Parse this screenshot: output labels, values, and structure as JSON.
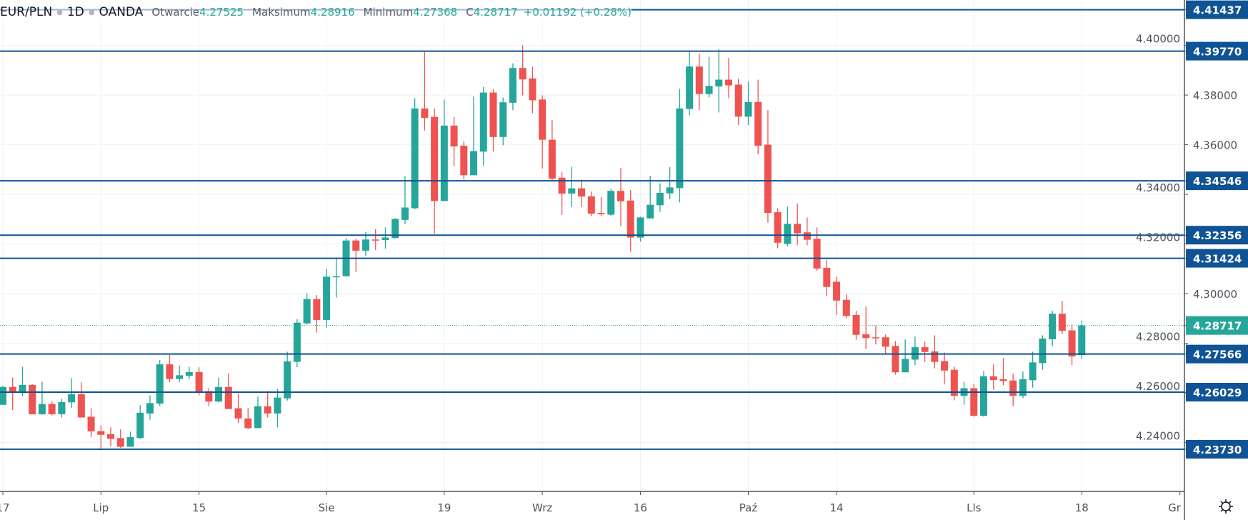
{
  "header": {
    "symbol": "EUR/PLN",
    "interval": "1D",
    "exchange": "OANDA",
    "open_label": "Otwarcie",
    "open_value": "4.27525",
    "high_label": "Maksimum",
    "high_value": "4.28916",
    "low_label": "Minimum",
    "low_value": "4.27368",
    "close_label": "C",
    "close_value": "4.28717",
    "change": "+0.01192 (+0.28%)"
  },
  "colors": {
    "up": "#26a69a",
    "down": "#ef5350",
    "level": "#0f5394",
    "grid": "#eef2f8",
    "text": "#50535e"
  },
  "chart_data": {
    "type": "candlestick",
    "title": "EUR/PLN 1D OANDA",
    "ylim": [
      4.2203,
      4.4183
    ],
    "y_ticks": [
      "4.40000",
      "4.38000",
      "4.36000",
      "4.34000",
      "4.32000",
      "4.30000",
      "4.28000",
      "4.26000",
      "4.24000"
    ],
    "x_ticks": [
      {
        "label": "17",
        "index": 0
      },
      {
        "label": "Lip",
        "index": 10
      },
      {
        "label": "15",
        "index": 20
      },
      {
        "label": "Sie",
        "index": 33
      },
      {
        "label": "19",
        "index": 45
      },
      {
        "label": "Wrz",
        "index": 55
      },
      {
        "label": "16",
        "index": 65
      },
      {
        "label": "Paź",
        "index": 76
      },
      {
        "label": "14",
        "index": 85
      },
      {
        "label": "Lls",
        "index": 99
      },
      {
        "label": "18",
        "index": 110
      },
      {
        "label": "Gr",
        "index": 120
      }
    ],
    "levels": [
      "4.41437",
      "4.39770",
      "4.34546",
      "4.32356",
      "4.31424",
      "4.27566",
      "4.26029",
      "4.23730"
    ],
    "last_price": "4.28717",
    "ohlc": [
      [
        4.2552,
        4.2629,
        4.2552,
        4.2624
      ],
      [
        4.2624,
        4.2662,
        4.2531,
        4.26
      ],
      [
        4.26,
        4.2705,
        4.2587,
        4.2632
      ],
      [
        4.2632,
        4.2636,
        4.2514,
        4.2514
      ],
      [
        4.2514,
        4.2645,
        4.2512,
        4.2555
      ],
      [
        4.2555,
        4.2566,
        4.2509,
        4.2514
      ],
      [
        4.2514,
        4.2576,
        4.2501,
        4.2563
      ],
      [
        4.2562,
        4.2659,
        4.2539,
        4.2595
      ],
      [
        4.2595,
        4.2642,
        4.2501,
        4.2501
      ],
      [
        4.2504,
        4.2538,
        4.2422,
        4.2445
      ],
      [
        4.2446,
        4.2469,
        4.2372,
        4.2431
      ],
      [
        4.2434,
        4.2461,
        4.2384,
        4.2415
      ],
      [
        4.2418,
        4.2453,
        4.2379,
        4.2383
      ],
      [
        4.2383,
        4.2444,
        4.2383,
        4.2422
      ],
      [
        4.2418,
        4.255,
        4.2415,
        4.252
      ],
      [
        4.2517,
        4.259,
        4.2492,
        4.2559
      ],
      [
        4.2557,
        4.2732,
        4.2547,
        4.2715
      ],
      [
        4.2715,
        4.2753,
        4.2643,
        4.2656
      ],
      [
        4.2656,
        4.271,
        4.2643,
        4.2671
      ],
      [
        4.2669,
        4.2705,
        4.2656,
        4.2684
      ],
      [
        4.2684,
        4.2703,
        4.259,
        4.2604
      ],
      [
        4.2607,
        4.2619,
        4.2547,
        4.2565
      ],
      [
        4.2565,
        4.2662,
        4.2562,
        4.2624
      ],
      [
        4.2624,
        4.2679,
        4.2535,
        4.2535
      ],
      [
        4.2538,
        4.2598,
        4.2478,
        4.2497
      ],
      [
        4.2497,
        4.254,
        4.2453,
        4.2458
      ],
      [
        4.2458,
        4.2585,
        4.2458,
        4.2546
      ],
      [
        4.2546,
        4.2608,
        4.2501,
        4.2517
      ],
      [
        4.2517,
        4.2616,
        4.2461,
        4.2581
      ],
      [
        4.2578,
        4.2766,
        4.2569,
        4.2727
      ],
      [
        4.2725,
        4.2897,
        4.2703,
        4.2883
      ],
      [
        4.288,
        4.3001,
        4.2876,
        4.2978
      ],
      [
        4.2978,
        4.2994,
        4.2843,
        4.2894
      ],
      [
        4.2894,
        4.3099,
        4.2863,
        4.3068
      ],
      [
        4.3066,
        4.3145,
        4.2984,
        4.307
      ],
      [
        4.307,
        4.3224,
        4.307,
        4.3214
      ],
      [
        4.3214,
        4.3222,
        4.3087,
        4.3173
      ],
      [
        4.3173,
        4.3249,
        4.3152,
        4.3218
      ],
      [
        4.3218,
        4.326,
        4.3176,
        4.3216
      ],
      [
        4.3216,
        4.3267,
        4.3181,
        4.3226
      ],
      [
        4.3224,
        4.3304,
        4.3222,
        4.3301
      ],
      [
        4.3297,
        4.3473,
        4.328,
        4.3347
      ],
      [
        4.3344,
        4.3787,
        4.334,
        4.3746
      ],
      [
        4.3746,
        4.3979,
        4.3657,
        4.3708
      ],
      [
        4.3712,
        4.3746,
        4.3241,
        4.3373
      ],
      [
        4.3373,
        4.3782,
        4.3373,
        4.3677
      ],
      [
        4.3677,
        4.3712,
        4.3514,
        4.3593
      ],
      [
        4.3596,
        4.3613,
        4.346,
        4.3477
      ],
      [
        4.3477,
        4.3794,
        4.3477,
        4.3574
      ],
      [
        4.3572,
        4.3833,
        4.3516,
        4.381
      ],
      [
        4.381,
        4.3825,
        4.3572,
        4.3631
      ],
      [
        4.3631,
        4.379,
        4.3598,
        4.3771
      ],
      [
        4.3769,
        4.3928,
        4.3739,
        4.3909
      ],
      [
        4.3909,
        4.4001,
        4.3799,
        4.3863
      ],
      [
        4.3867,
        4.3914,
        4.3727,
        4.3779
      ],
      [
        4.3782,
        4.3799,
        4.3504,
        4.362
      ],
      [
        4.362,
        4.37,
        4.3454,
        4.3463
      ],
      [
        4.3467,
        4.3489,
        4.3317,
        4.3403
      ],
      [
        4.3403,
        4.3511,
        4.3349,
        4.3424
      ],
      [
        4.3424,
        4.3458,
        4.3349,
        4.3391
      ],
      [
        4.3392,
        4.3411,
        4.3313,
        4.3322
      ],
      [
        4.3325,
        4.3389,
        4.3313,
        4.332
      ],
      [
        4.3318,
        4.3422,
        4.3313,
        4.3414
      ],
      [
        4.3414,
        4.3506,
        4.3272,
        4.3372
      ],
      [
        4.3375,
        4.3418,
        4.3169,
        4.3226
      ],
      [
        4.3226,
        4.331,
        4.3209,
        4.3307
      ],
      [
        4.3303,
        4.3475,
        4.3303,
        4.3358
      ],
      [
        4.3356,
        4.3444,
        4.3329,
        4.3406
      ],
      [
        4.3404,
        4.351,
        4.3381,
        4.3428
      ],
      [
        4.3425,
        4.3825,
        4.3368,
        4.3746
      ],
      [
        4.3744,
        4.3976,
        4.3718,
        4.3915
      ],
      [
        4.3915,
        4.3967,
        4.3739,
        4.3804
      ],
      [
        4.3804,
        4.3954,
        4.379,
        4.3837
      ],
      [
        4.3835,
        4.3984,
        4.373,
        4.3862
      ],
      [
        4.3862,
        4.395,
        4.3787,
        4.3839
      ],
      [
        4.3842,
        4.3866,
        4.3679,
        4.3713
      ],
      [
        4.3713,
        4.3855,
        4.3679,
        4.3772
      ],
      [
        4.3772,
        4.3862,
        4.3562,
        4.3596
      ],
      [
        4.36,
        4.3739,
        4.3286,
        4.3325
      ],
      [
        4.3328,
        4.3344,
        4.3183,
        4.3205
      ],
      [
        4.32,
        4.335,
        4.319,
        4.3281
      ],
      [
        4.3281,
        4.3363,
        4.3195,
        4.3243
      ],
      [
        4.3247,
        4.3307,
        4.3195,
        4.3217
      ],
      [
        4.3221,
        4.3267,
        4.3091,
        4.3101
      ],
      [
        4.3104,
        4.3137,
        4.2989,
        4.3027
      ],
      [
        4.3048,
        4.3068,
        4.2915,
        4.2972
      ],
      [
        4.2975,
        4.2997,
        4.2901,
        4.291
      ],
      [
        4.2914,
        4.293,
        4.2814,
        4.2834
      ],
      [
        4.2836,
        4.2948,
        4.2777,
        4.2821
      ],
      [
        4.2824,
        4.2871,
        4.2795,
        4.2821
      ],
      [
        4.2824,
        4.2835,
        4.2756,
        4.2786
      ],
      [
        4.2789,
        4.2809,
        4.2674,
        4.2683
      ],
      [
        4.2683,
        4.2815,
        4.2683,
        4.2737
      ],
      [
        4.2734,
        4.2827,
        4.2712,
        4.2784
      ],
      [
        4.2784,
        4.2806,
        4.2725,
        4.2765
      ],
      [
        4.2767,
        4.2832,
        4.2699,
        4.2725
      ],
      [
        4.2728,
        4.2763,
        4.2634,
        4.269
      ],
      [
        4.2693,
        4.2706,
        4.257,
        4.2588
      ],
      [
        4.2588,
        4.2645,
        4.2552,
        4.2619
      ],
      [
        4.2619,
        4.2637,
        4.2504,
        4.2508
      ],
      [
        4.2508,
        4.2689,
        4.2504,
        4.2667
      ],
      [
        4.2667,
        4.2715,
        4.2613,
        4.2652
      ],
      [
        4.2655,
        4.2741,
        4.2631,
        4.2648
      ],
      [
        4.265,
        4.2677,
        4.2547,
        4.2588
      ],
      [
        4.2588,
        4.2686,
        4.2579,
        4.2655
      ],
      [
        4.2651,
        4.2766,
        4.2621,
        4.2723
      ],
      [
        4.272,
        4.2832,
        4.2694,
        4.2819
      ],
      [
        4.2816,
        4.2931,
        4.2789,
        4.2919
      ],
      [
        4.2919,
        4.2971,
        4.2837,
        4.285
      ],
      [
        4.2852,
        4.2875,
        4.2712,
        4.2747
      ],
      [
        4.27525,
        4.28916,
        4.27368,
        4.28717
      ]
    ]
  }
}
